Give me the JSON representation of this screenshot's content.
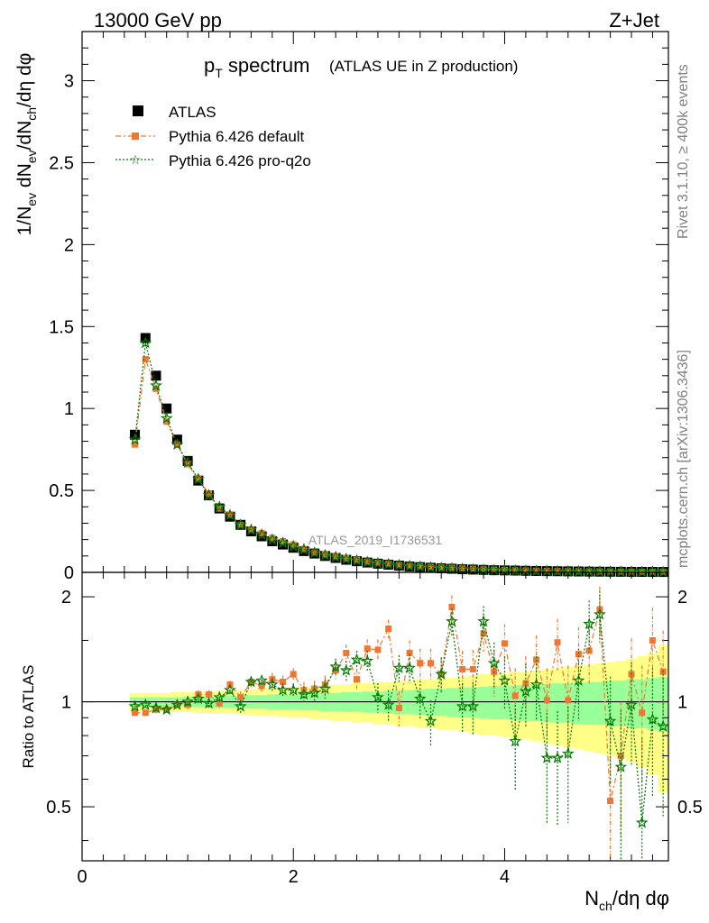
{
  "header": {
    "energy": "13000 GeV pp",
    "process": "Z+Jet"
  },
  "side_labels": {
    "rivet": "Rivet 3.1.10, ≥ 400k events",
    "mcplots": "mcplots.cern.ch [arXiv:1306.3436]"
  },
  "colors": {
    "atlas": "#000000",
    "pythia_default": "#ee7733",
    "pythia_q2o": "#007700",
    "band_inner": "#99ff99",
    "band_outer": "#ffff88"
  },
  "chart_data": [
    {
      "type": "scatter",
      "title": "p_T spectrum",
      "title_main": "p",
      "title_sub": "T",
      "title_rest": " spectrum",
      "subtitle": "(ATLAS UE in Z production)",
      "ylabel": "1/N_ev dN_ev/dN_ch/dη dφ",
      "ylabel_parts": [
        "1/N",
        "ev",
        " dN",
        "ev",
        "/dN",
        "ch",
        "/dη dφ"
      ],
      "ylim": [
        0,
        3.3
      ],
      "xlim": [
        0,
        5.55
      ],
      "y_ticks": [
        0,
        0.5,
        1,
        1.5,
        2,
        2.5,
        3
      ],
      "y_tick_labels": [
        "0",
        "0.5",
        "1",
        "1.5",
        "2",
        "2.5",
        "3"
      ],
      "watermark": "ATLAS_2019_I1736531",
      "legend": {
        "position": "top-left",
        "entries": [
          "ATLAS",
          "Pythia 6.426 default",
          "Pythia 6.426 pro-q2o"
        ]
      },
      "x": [
        0.5,
        0.6,
        0.7,
        0.8,
        0.9,
        1.0,
        1.1,
        1.2,
        1.3,
        1.4,
        1.5,
        1.6,
        1.7,
        1.8,
        1.9,
        2.0,
        2.1,
        2.2,
        2.3,
        2.4,
        2.5,
        2.6,
        2.7,
        2.8,
        2.9,
        3.0,
        3.1,
        3.2,
        3.3,
        3.4,
        3.5,
        3.6,
        3.7,
        3.8,
        3.9,
        4.0,
        4.1,
        4.2,
        4.3,
        4.4,
        4.5,
        4.6,
        4.7,
        4.8,
        4.9,
        5.0,
        5.1,
        5.2,
        5.3,
        5.4,
        5.5
      ],
      "series": [
        {
          "name": "ATLAS",
          "values": [
            0.84,
            1.43,
            1.2,
            1.0,
            0.81,
            0.68,
            0.56,
            0.47,
            0.39,
            0.34,
            0.29,
            0.25,
            0.22,
            0.19,
            0.17,
            0.15,
            0.13,
            0.115,
            0.1,
            0.088,
            0.077,
            0.068,
            0.06,
            0.053,
            0.047,
            0.041,
            0.036,
            0.032,
            0.028,
            0.025,
            0.022,
            0.019,
            0.017,
            0.015,
            0.013,
            0.012,
            0.011,
            0.0095,
            0.0085,
            0.0075,
            0.0068,
            0.006,
            0.0054,
            0.0048,
            0.0043,
            0.0039,
            0.0035,
            0.0031,
            0.0028,
            0.0025,
            0.0023
          ]
        },
        {
          "name": "Pythia 6.426 default",
          "values": [
            0.78,
            1.3,
            1.12,
            0.92,
            0.78,
            0.66,
            0.57,
            0.48,
            0.39,
            0.35,
            0.29,
            0.26,
            0.24,
            0.21,
            0.19,
            0.17,
            0.14,
            0.12,
            0.11,
            0.098,
            0.088,
            0.076,
            0.065,
            0.058,
            0.052,
            0.045,
            0.04,
            0.036,
            0.032,
            0.029,
            0.027,
            0.024,
            0.021,
            0.018,
            0.016,
            0.014,
            0.012,
            0.011,
            0.0095,
            0.0085,
            0.0077,
            0.007,
            0.0063,
            0.0056,
            0.005,
            0.0046,
            0.0042,
            0.0038,
            0.0034,
            0.0031,
            0.0028
          ]
        },
        {
          "name": "Pythia 6.426 pro-q2o",
          "values": [
            0.81,
            1.4,
            1.14,
            0.94,
            0.78,
            0.67,
            0.57,
            0.47,
            0.4,
            0.35,
            0.29,
            0.26,
            0.23,
            0.2,
            0.18,
            0.16,
            0.14,
            0.12,
            0.105,
            0.094,
            0.082,
            0.073,
            0.063,
            0.056,
            0.05,
            0.044,
            0.039,
            0.035,
            0.031,
            0.027,
            0.024,
            0.021,
            0.018,
            0.016,
            0.014,
            0.013,
            0.011,
            0.0099,
            0.0089,
            0.008,
            0.0072,
            0.0064,
            0.0058,
            0.0052,
            0.0046,
            0.0041,
            0.0037,
            0.0033,
            0.003,
            0.0027,
            0.0024
          ]
        }
      ]
    },
    {
      "type": "scatter",
      "ylabel": "Ratio to ATLAS",
      "xlabel": "N_ch/dη dφ",
      "xlabel_parts": [
        "N",
        "ch",
        "/dη dφ"
      ],
      "ylim": [
        0.35,
        2.35
      ],
      "xlim": [
        0,
        5.55
      ],
      "y_ticks": [
        0.5,
        1,
        2
      ],
      "y_tick_labels": [
        "0.5",
        "1",
        "2"
      ],
      "x_ticks": [
        0,
        2,
        4
      ],
      "x_tick_labels": [
        "0",
        "2",
        "4"
      ],
      "x": [
        0.5,
        0.6,
        0.7,
        0.8,
        0.9,
        1.0,
        1.1,
        1.2,
        1.3,
        1.4,
        1.5,
        1.6,
        1.7,
        1.8,
        1.9,
        2.0,
        2.1,
        2.2,
        2.3,
        2.4,
        2.5,
        2.6,
        2.7,
        2.8,
        2.9,
        3.0,
        3.1,
        3.2,
        3.3,
        3.4,
        3.5,
        3.6,
        3.7,
        3.8,
        3.9,
        4.0,
        4.1,
        4.2,
        4.3,
        4.4,
        4.5,
        4.6,
        4.7,
        4.8,
        4.9,
        5.0,
        5.1,
        5.2,
        5.3,
        5.4,
        5.5
      ],
      "band_inner": [
        0.03,
        0.03,
        0.03,
        0.03,
        0.03,
        0.035,
        0.035,
        0.035,
        0.04,
        0.04,
        0.04,
        0.045,
        0.045,
        0.05,
        0.05,
        0.05,
        0.055,
        0.055,
        0.06,
        0.06,
        0.065,
        0.065,
        0.07,
        0.07,
        0.075,
        0.08,
        0.08,
        0.085,
        0.09,
        0.09,
        0.095,
        0.1,
        0.1,
        0.105,
        0.11,
        0.11,
        0.115,
        0.12,
        0.12,
        0.125,
        0.13,
        0.13,
        0.135,
        0.14,
        0.14,
        0.15,
        0.15,
        0.16,
        0.16,
        0.17,
        0.18
      ],
      "band_outer": [
        0.06,
        0.06,
        0.06,
        0.06,
        0.065,
        0.065,
        0.07,
        0.07,
        0.075,
        0.075,
        0.08,
        0.085,
        0.09,
        0.09,
        0.095,
        0.1,
        0.1,
        0.11,
        0.11,
        0.12,
        0.12,
        0.13,
        0.13,
        0.14,
        0.14,
        0.15,
        0.15,
        0.16,
        0.16,
        0.17,
        0.17,
        0.18,
        0.19,
        0.2,
        0.2,
        0.21,
        0.22,
        0.22,
        0.23,
        0.24,
        0.25,
        0.26,
        0.27,
        0.28,
        0.29,
        0.3,
        0.31,
        0.33,
        0.35,
        0.38,
        0.45
      ],
      "series": [
        {
          "name": "Pythia 6.426 default",
          "values": [
            0.93,
            0.93,
            0.95,
            0.95,
            0.98,
            0.98,
            1.05,
            1.05,
            0.99,
            1.12,
            1.03,
            1.14,
            1.11,
            1.16,
            1.14,
            1.2,
            1.08,
            1.09,
            1.12,
            1.23,
            1.38,
            1.16,
            1.42,
            1.41,
            1.62,
            0.96,
            1.38,
            1.29,
            1.29,
            1.2,
            1.87,
            1.24,
            1.24,
            1.57,
            1.22,
            1.47,
            1.04,
            1.13,
            1.32,
            1.01,
            1.48,
            1.01,
            1.37,
            1.4,
            1.84,
            0.52,
            0.7,
            1.2,
            0.93,
            1.5,
            1.22
          ],
          "err": [
            0.02,
            0.02,
            0.02,
            0.02,
            0.02,
            0.03,
            0.03,
            0.03,
            0.03,
            0.03,
            0.04,
            0.04,
            0.04,
            0.05,
            0.05,
            0.05,
            0.06,
            0.06,
            0.07,
            0.07,
            0.08,
            0.08,
            0.09,
            0.1,
            0.1,
            0.11,
            0.12,
            0.13,
            0.13,
            0.14,
            0.15,
            0.16,
            0.17,
            0.18,
            0.19,
            0.2,
            0.21,
            0.22,
            0.23,
            0.24,
            0.25,
            0.26,
            0.27,
            0.28,
            0.3,
            0.3,
            0.3,
            0.32,
            0.34,
            0.36,
            0.38
          ]
        },
        {
          "name": "Pythia 6.426 pro-q2o",
          "values": [
            0.97,
            0.98,
            0.96,
            0.95,
            0.98,
            1.0,
            1.02,
            0.99,
            1.03,
            1.08,
            0.97,
            1.14,
            1.15,
            1.12,
            1.08,
            1.08,
            1.05,
            1.06,
            1.09,
            1.26,
            1.23,
            1.32,
            1.31,
            1.03,
            0.98,
            1.25,
            1.25,
            1.02,
            0.88,
            1.2,
            1.7,
            0.97,
            0.97,
            1.7,
            1.29,
            1.15,
            0.77,
            1.07,
            1.12,
            0.69,
            0.69,
            0.71,
            1.15,
            1.67,
            1.78,
            0.88,
            0.65,
            0.98,
            0.45,
            0.89,
            0.85
          ],
          "err": [
            0.02,
            0.02,
            0.02,
            0.02,
            0.02,
            0.03,
            0.03,
            0.03,
            0.03,
            0.03,
            0.04,
            0.04,
            0.04,
            0.05,
            0.05,
            0.05,
            0.06,
            0.06,
            0.07,
            0.07,
            0.08,
            0.08,
            0.09,
            0.1,
            0.1,
            0.11,
            0.12,
            0.13,
            0.13,
            0.14,
            0.15,
            0.16,
            0.17,
            0.18,
            0.19,
            0.2,
            0.21,
            0.22,
            0.23,
            0.24,
            0.25,
            0.26,
            0.27,
            0.28,
            0.3,
            0.3,
            0.3,
            0.32,
            0.34,
            0.36,
            0.38
          ]
        }
      ]
    }
  ]
}
